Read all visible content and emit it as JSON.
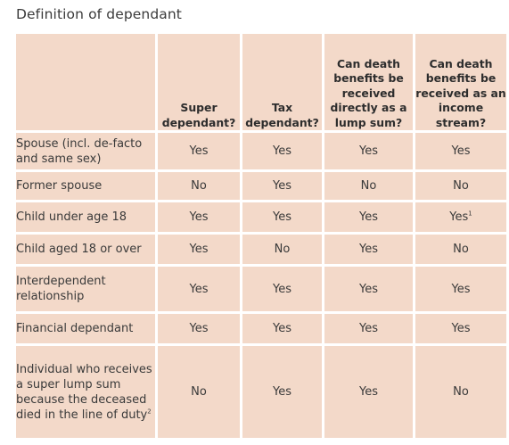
{
  "title": "Definition of dependant",
  "headers": [
    "",
    "Super dependant?",
    "Tax dependant?",
    "Can death benefits be received directly as a lump sum?",
    "Can death benefits be received as an income stream?"
  ],
  "rows": [
    {
      "label": "Spouse (incl. de-facto and same sex)",
      "super": "Yes",
      "tax": "Yes",
      "lump": "Yes",
      "income": "Yes",
      "income_sup": ""
    },
    {
      "label": "Former spouse",
      "super": "No",
      "tax": "Yes",
      "lump": "No",
      "income": "No",
      "income_sup": ""
    },
    {
      "label": "Child under age 18",
      "super": "Yes",
      "tax": "Yes",
      "lump": "Yes",
      "income": "Yes",
      "income_sup": "1"
    },
    {
      "label": "Child aged 18 or over",
      "super": "Yes",
      "tax": "No",
      "lump": "Yes",
      "income": "No",
      "income_sup": ""
    },
    {
      "label": "Interdependent relationship",
      "super": "Yes",
      "tax": "Yes",
      "lump": "Yes",
      "income": "Yes",
      "income_sup": ""
    },
    {
      "label": "Financial dependant",
      "super": "Yes",
      "tax": "Yes",
      "lump": "Yes",
      "income": "Yes",
      "income_sup": ""
    },
    {
      "label": "Individual who receives a super lump sum because the deceased died in the line of duty",
      "label_sup": "2",
      "super": "No",
      "tax": "Yes",
      "lump": "Yes",
      "income": "No",
      "income_sup": ""
    }
  ]
}
